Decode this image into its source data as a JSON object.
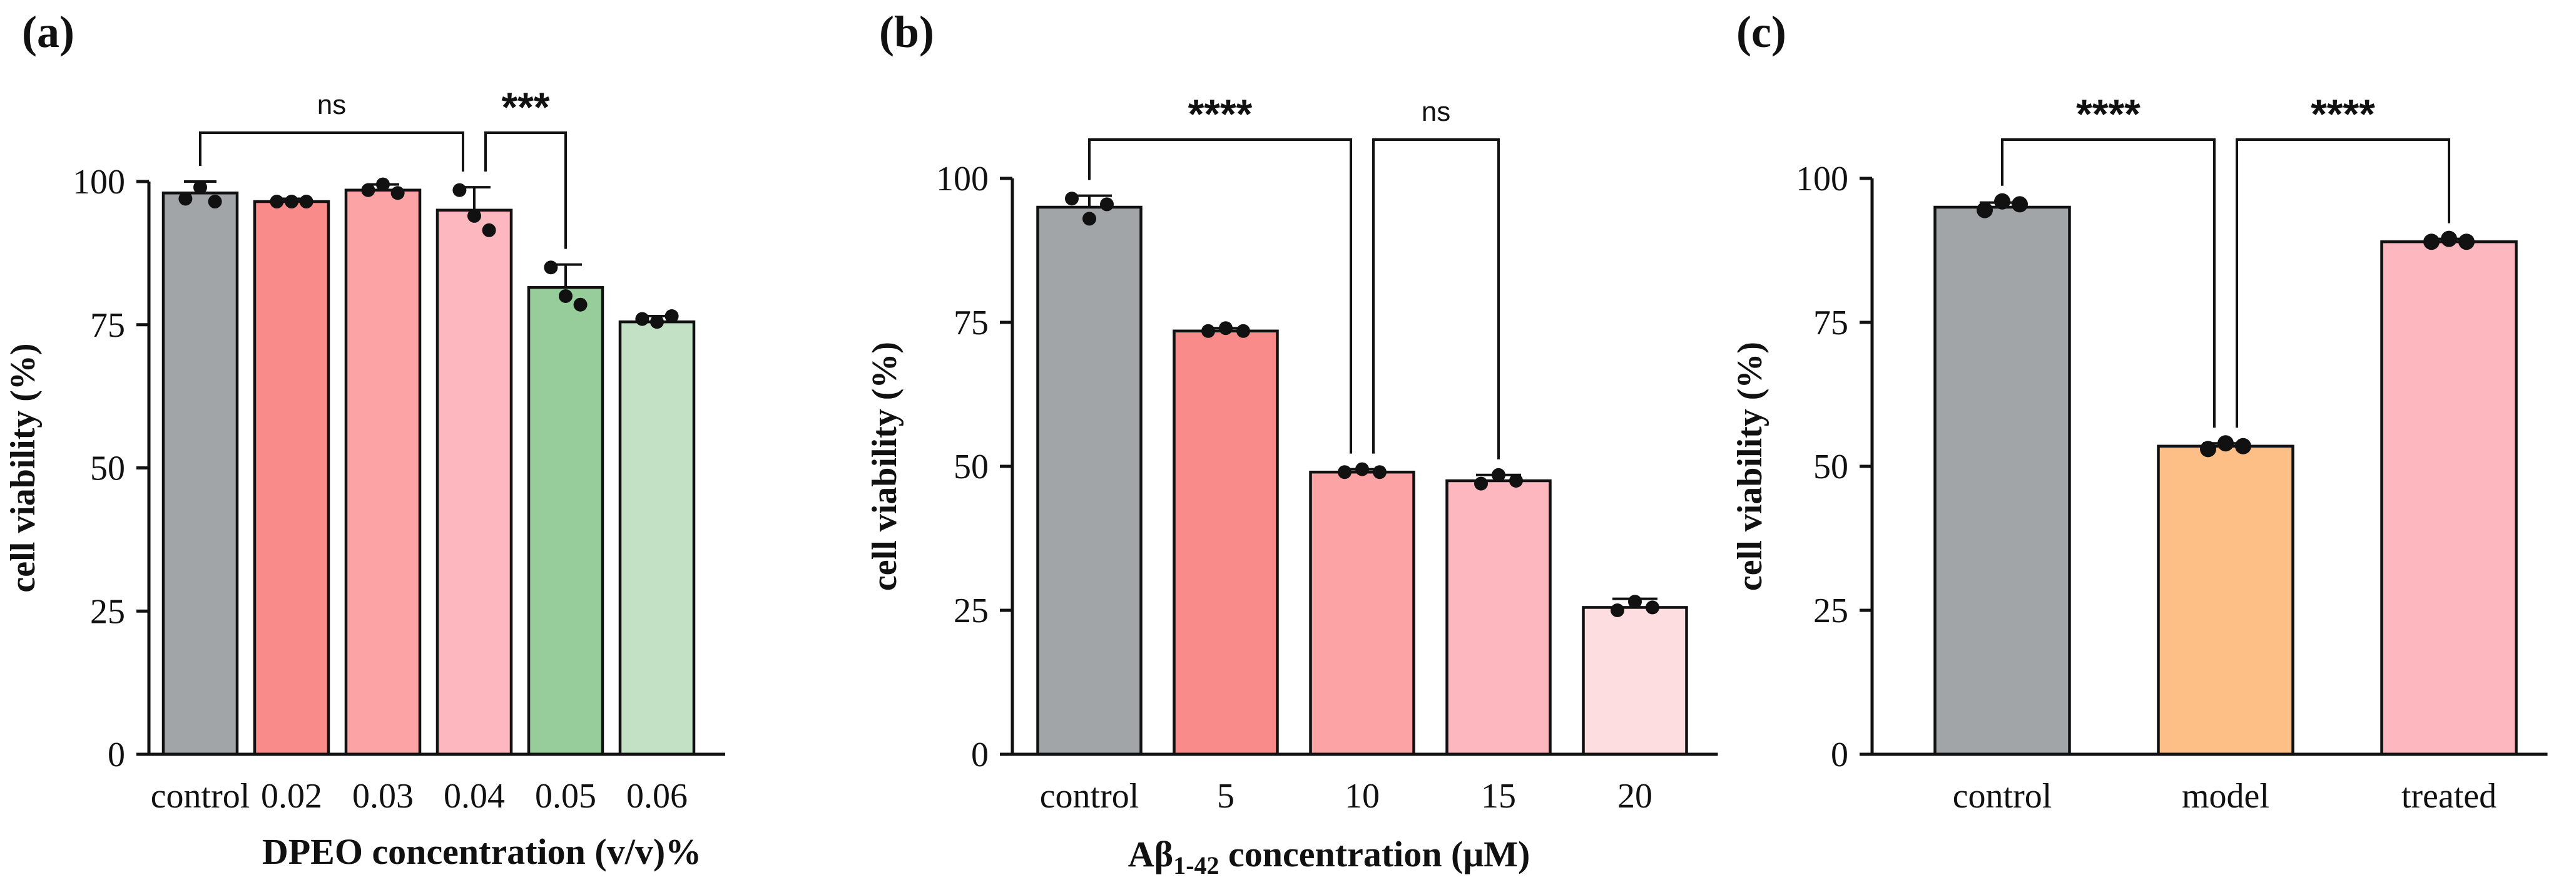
{
  "chart_data": [
    {
      "type": "bar",
      "panel_label": "(a)",
      "title": "",
      "xlabel": "DPEO concentration (v/v)%",
      "xlabel_parts": [
        {
          "text": "DPEO concentration (v/v)%",
          "sub": false
        }
      ],
      "ylabel": "cell viability (%)",
      "ylim": [
        0,
        100
      ],
      "yticks": [
        "0",
        "25",
        "50",
        "75",
        "100"
      ],
      "categories": [
        "control",
        "0.02",
        "0.03",
        "0.04",
        "0.05",
        "0.06"
      ],
      "values": [
        98,
        96.5,
        98.5,
        95,
        81.5,
        75.5
      ],
      "errors": [
        2,
        0.5,
        1,
        4,
        4,
        1
      ],
      "points": [
        [
          97,
          99,
          96.5
        ],
        [
          96.5,
          96.5,
          96.5
        ],
        [
          98.5,
          99.5,
          98
        ],
        [
          98.5,
          94,
          91.5
        ],
        [
          85,
          80,
          78.5
        ],
        [
          76,
          75.5,
          76.5
        ]
      ],
      "colors": [
        "#a2a5a8",
        "#f98c8a",
        "#fca3a6",
        "#fdb8bf",
        "#96cd9a",
        "#c3e1c5"
      ],
      "significance": [
        {
          "from": 0,
          "to": 3,
          "label": "ns"
        },
        {
          "from": 3,
          "to": 4,
          "label": "***"
        }
      ]
    },
    {
      "type": "bar",
      "panel_label": "(b)",
      "title": "",
      "xlabel": "Aβ1-42 concentration (μM)",
      "xlabel_parts": [
        {
          "text": "Aβ",
          "sub": false
        },
        {
          "text": "1-42",
          "sub": true
        },
        {
          "text": " concentration (μM)",
          "sub": false
        }
      ],
      "ylabel": "cell viability (%)",
      "ylim": [
        0,
        100
      ],
      "yticks": [
        "0",
        "25",
        "50",
        "75",
        "100"
      ],
      "categories": [
        "control",
        "5",
        "10",
        "15",
        "20"
      ],
      "values": [
        95,
        73.5,
        49,
        47.5,
        25.5
      ],
      "errors": [
        2,
        0.5,
        0.5,
        1,
        1.5
      ],
      "points": [
        [
          96.5,
          93,
          95.5
        ],
        [
          73.5,
          74,
          73.5
        ],
        [
          49,
          49.5,
          49
        ],
        [
          47,
          48.5,
          47.5
        ],
        [
          25,
          26.5,
          25.5
        ]
      ],
      "colors": [
        "#a2a5a8",
        "#f98c8a",
        "#fca3a6",
        "#fdb8bf",
        "#fddde0"
      ],
      "significance": [
        {
          "from": 0,
          "to": 2,
          "label": "****"
        },
        {
          "from": 2,
          "to": 3,
          "label": "ns"
        }
      ]
    },
    {
      "type": "bar",
      "panel_label": "(c)",
      "title": "",
      "xlabel": "",
      "xlabel_parts": [],
      "ylabel": "cell viability (%)",
      "ylim": [
        0,
        100
      ],
      "yticks": [
        "0",
        "25",
        "50",
        "75",
        "100"
      ],
      "categories": [
        "control",
        "model",
        "treated"
      ],
      "values": [
        95,
        53.5,
        89
      ],
      "errors": [
        0.8,
        0.5,
        0.5
      ],
      "points": [
        [
          94.5,
          96,
          95.5
        ],
        [
          53,
          54,
          53.5
        ],
        [
          89,
          89.5,
          89
        ]
      ],
      "colors": [
        "#a2a5a8",
        "#fdbf86",
        "#fdb8bf"
      ],
      "significance": [
        {
          "from": 0,
          "to": 1,
          "label": "****"
        },
        {
          "from": 1,
          "to": 2,
          "label": "****"
        }
      ]
    }
  ]
}
